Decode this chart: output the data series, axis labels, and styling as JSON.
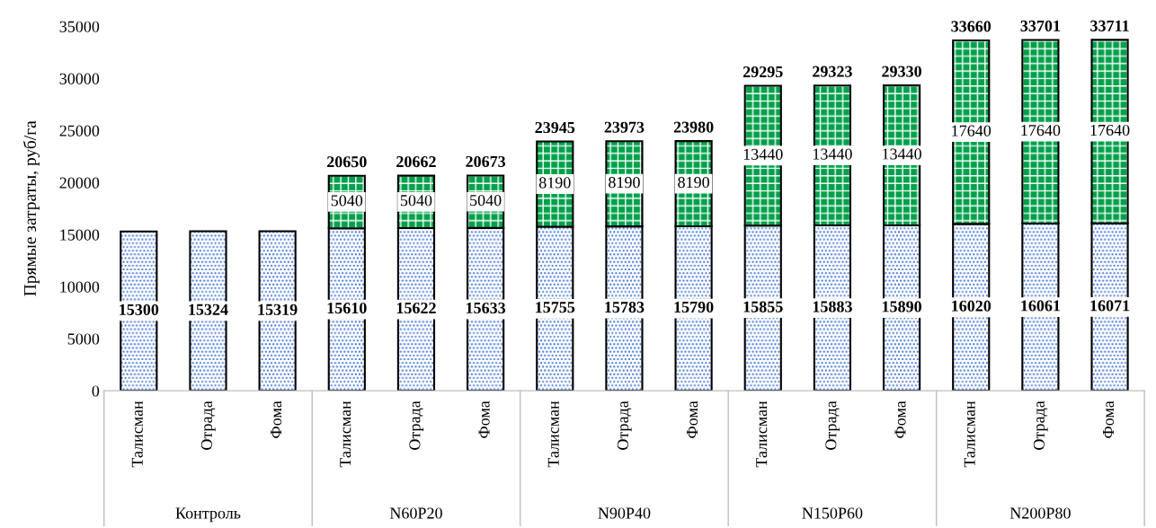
{
  "chart_data": {
    "type": "bar",
    "stacked": true,
    "ylabel": "Прямые затраты, руб/га",
    "categories": [
      "Талисман",
      "Отрада",
      "Фома",
      "Талисман",
      "Отрада",
      "Фома",
      "Талисман",
      "Отрада",
      "Фома",
      "Талисман",
      "Отрада",
      "Фома",
      "Талисман",
      "Отрада",
      "Фома"
    ],
    "series": [
      {
        "color": "#3a6fd8",
        "values": [
          15300,
          15324,
          15319,
          15610,
          15622,
          15633,
          15755,
          15783,
          15790,
          15855,
          15883,
          15890,
          16020,
          16061,
          16071
        ]
      },
      {
        "color": "#00a04a",
        "values": [
          null,
          null,
          null,
          5040,
          5040,
          5040,
          8190,
          8190,
          8190,
          13440,
          13440,
          13440,
          17640,
          17640,
          17640
        ]
      }
    ],
    "totals": [
      null,
      null,
      null,
      "20650",
      "20662",
      "20673",
      "23945",
      "23973",
      "23980",
      "29295",
      "29323",
      "29330",
      "33660",
      "33701",
      "33711"
    ],
    "annotations": [
      "Контроль",
      "N60P20",
      "N90P40",
      "N150P60",
      "N200P80"
    ],
    "data_labels": true,
    "grid": false,
    "legend": false,
    "ylim": [
      0,
      35000
    ],
    "yticks": [
      0,
      5000,
      10000,
      15000,
      20000,
      25000,
      30000,
      35000
    ]
  }
}
